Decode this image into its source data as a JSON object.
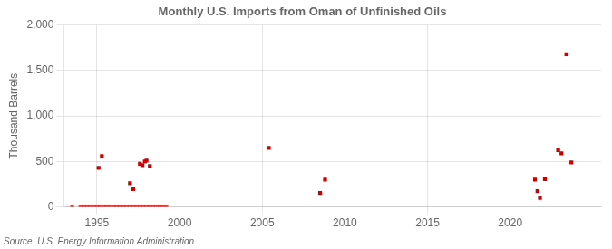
{
  "chart_data": {
    "type": "scatter",
    "title": "Monthly U.S. Imports from Oman of Unfinished Oils",
    "ylabel": "Thousand Barrels",
    "source": "Source: U.S. Energy Information Administration",
    "color": "#cc0000",
    "marker": "square",
    "grid": true,
    "xlim": [
      1993.0,
      2025.5
    ],
    "ylim": [
      0,
      2000
    ],
    "xticks": [
      1995,
      2000,
      2005,
      2010,
      2015,
      2020
    ],
    "yticks": [
      0,
      500,
      {
        "value": 1000,
        "label": "1,000"
      },
      {
        "value": 1500,
        "label": "1,500"
      },
      {
        "value": 2000,
        "label": "2,000"
      }
    ],
    "x": [
      1993.5,
      1994.0,
      1994.2,
      1994.4,
      1994.6,
      1994.8,
      1995.0,
      1995.2,
      1995.4,
      1995.6,
      1995.8,
      1996.0,
      1996.2,
      1996.4,
      1996.6,
      1996.8,
      1997.0,
      1997.2,
      1997.4,
      1997.6,
      1997.8,
      1998.0,
      1998.2,
      1998.4,
      1998.6,
      1998.8,
      1999.0,
      1999.2,
      1995.1,
      1995.3,
      1997.0,
      1997.2,
      1997.6,
      1997.75,
      1997.9,
      1998.0,
      1998.2,
      2005.4,
      2008.5,
      2008.8,
      2021.5,
      2021.65,
      2021.8,
      2022.1,
      2022.9,
      2023.1,
      2023.4,
      2023.7
    ],
    "values": [
      2,
      2,
      2,
      2,
      2,
      2,
      2,
      2,
      2,
      2,
      2,
      2,
      2,
      2,
      2,
      2,
      2,
      2,
      2,
      2,
      2,
      2,
      2,
      2,
      2,
      2,
      2,
      2,
      430,
      560,
      260,
      195,
      475,
      460,
      500,
      510,
      450,
      650,
      155,
      300,
      300,
      175,
      100,
      305,
      625,
      590,
      1680,
      490
    ]
  }
}
